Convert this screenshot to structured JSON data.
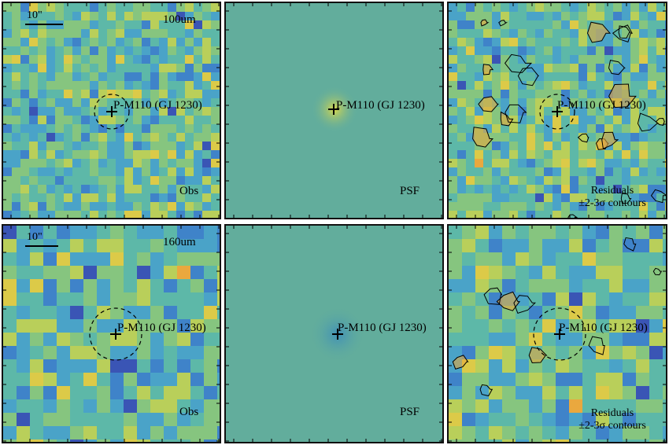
{
  "rows": [
    {
      "band": "100um",
      "scalebar": "10\"",
      "source": "P-M110 (GJ 1230)",
      "panels": [
        {
          "id": "obs",
          "label": "Obs"
        },
        {
          "id": "psf",
          "label": "PSF"
        },
        {
          "id": "res",
          "label_line1": "Residuals",
          "label_line2": "±2-3σ contours"
        }
      ]
    },
    {
      "band": "160um",
      "scalebar": "10\"",
      "source": "P-M110 (GJ 1230)",
      "panels": [
        {
          "id": "obs",
          "label": "Obs"
        },
        {
          "id": "psf",
          "label": "PSF"
        },
        {
          "id": "res",
          "label_line1": "Residuals",
          "label_line2": "±2-3σ contours"
        }
      ]
    }
  ],
  "colors": {
    "psf_background": "#62ad9c",
    "psf_center_100": "#d9d84a",
    "psf_center_160": "#3f8fb8",
    "frame": "#111111"
  }
}
